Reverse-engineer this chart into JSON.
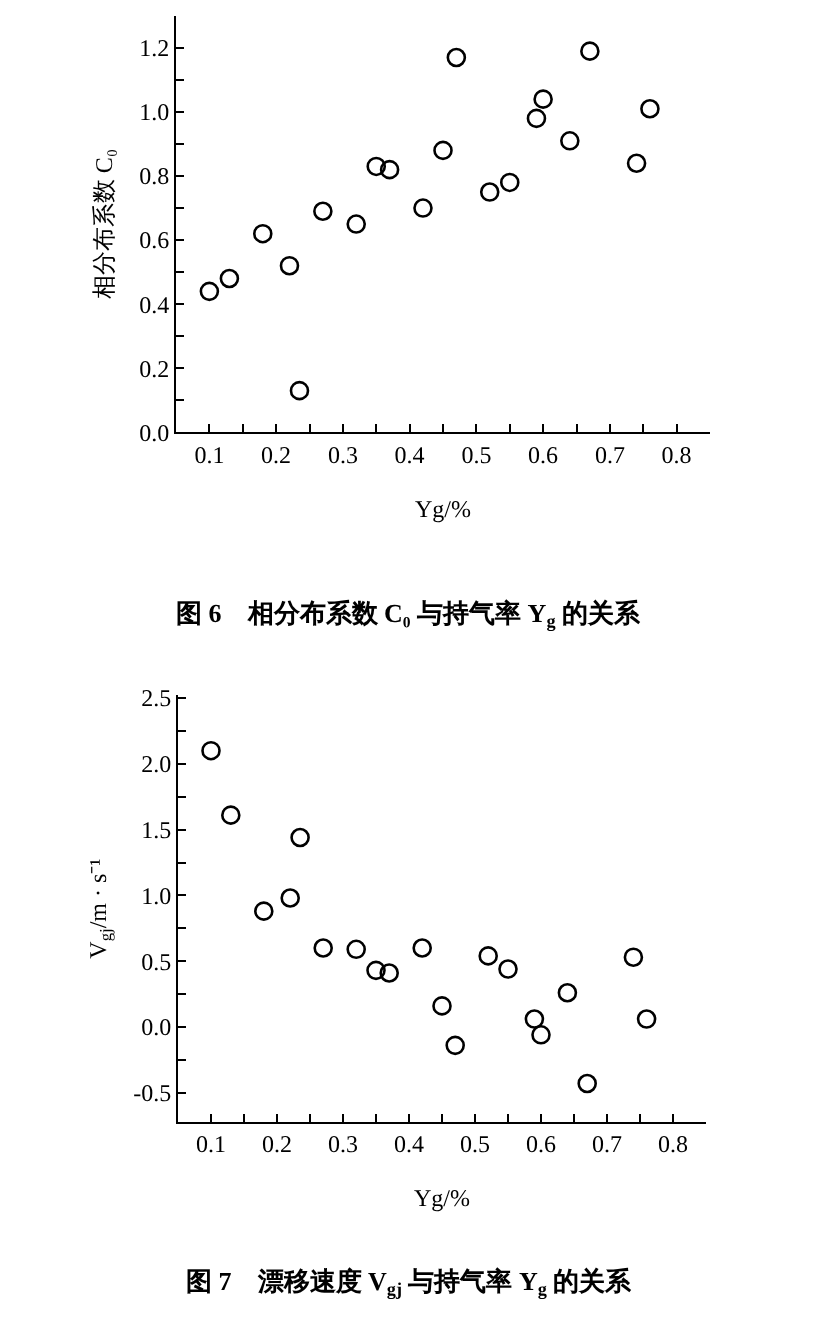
{
  "chart_data": [
    {
      "type": "scatter",
      "x": [
        0.1,
        0.13,
        0.18,
        0.22,
        0.235,
        0.27,
        0.32,
        0.35,
        0.37,
        0.42,
        0.45,
        0.47,
        0.52,
        0.55,
        0.59,
        0.6,
        0.64,
        0.67,
        0.74,
        0.76
      ],
      "values": [
        0.44,
        0.48,
        0.62,
        0.52,
        0.13,
        0.69,
        0.65,
        0.83,
        0.82,
        0.7,
        0.88,
        1.17,
        0.75,
        0.78,
        0.98,
        1.04,
        0.91,
        1.19,
        0.84,
        1.01
      ],
      "color": "#000000",
      "marker": "circle",
      "xlabel": "Yg/%",
      "ylabel": "相分布系数 C₀",
      "xlim": [
        0.05,
        0.85
      ],
      "xticks": [
        {
          "value": 0.05,
          "label": null
        },
        0.1,
        {
          "value": 0.15,
          "label": null
        },
        0.2,
        {
          "value": 0.25,
          "label": null
        },
        0.3,
        {
          "value": 0.35,
          "label": null
        },
        0.4,
        {
          "value": 0.45,
          "label": null
        },
        0.5,
        {
          "value": 0.55,
          "label": null
        },
        0.6,
        {
          "value": 0.65,
          "label": null
        },
        0.7,
        {
          "value": 0.75,
          "label": null
        },
        0.8
      ],
      "ylim": [
        0,
        1.3
      ],
      "yticks": [
        {
          "value": 0,
          "label": "0.0"
        },
        {
          "value": 0.1,
          "label": null
        },
        0.2,
        {
          "value": 0.3,
          "label": null
        },
        0.4,
        {
          "value": 0.5,
          "label": null
        },
        0.6,
        {
          "value": 0.7,
          "label": null
        },
        0.8,
        {
          "value": 0.9,
          "label": null
        },
        {
          "value": 1.0,
          "label": "1.0"
        },
        {
          "value": 1.1,
          "label": null
        },
        1.2
      ],
      "annotations": [
        "图 6　相分布系数 C₀ 与持气率 Y$_{g}$ 的关系"
      ]
    },
    {
      "type": "scatter",
      "x": [
        0.1,
        0.13,
        0.18,
        0.22,
        0.235,
        0.27,
        0.32,
        0.35,
        0.37,
        0.42,
        0.45,
        0.47,
        0.52,
        0.55,
        0.59,
        0.6,
        0.64,
        0.67,
        0.74,
        0.76
      ],
      "values": [
        2.1,
        1.61,
        0.88,
        0.98,
        1.44,
        0.6,
        0.59,
        0.43,
        0.41,
        0.6,
        0.16,
        -0.14,
        0.54,
        0.44,
        0.06,
        -0.06,
        0.26,
        -0.43,
        0.53,
        0.06
      ],
      "color": "#000000",
      "marker": "circle",
      "xlabel": "Yg/%",
      "ylabel": "V$_{gj}$/m · s⁻¹",
      "xlim": [
        0.05,
        0.85
      ],
      "xticks": [
        {
          "value": 0.05,
          "label": null
        },
        0.1,
        {
          "value": 0.15,
          "label": null
        },
        0.2,
        {
          "value": 0.25,
          "label": null
        },
        0.3,
        {
          "value": 0.35,
          "label": null
        },
        0.4,
        {
          "value": 0.45,
          "label": null
        },
        0.5,
        {
          "value": 0.55,
          "label": null
        },
        0.6,
        {
          "value": 0.65,
          "label": null
        },
        0.7,
        {
          "value": 0.75,
          "label": null
        },
        0.8
      ],
      "ylim": [
        -0.72,
        2.52
      ],
      "yticks": [
        -0.5,
        {
          "value": -0.25,
          "label": null
        },
        {
          "value": 0,
          "label": "0.0"
        },
        {
          "value": 0.25,
          "label": null
        },
        0.5,
        {
          "value": 0.75,
          "label": null
        },
        {
          "value": 1.0,
          "label": "1.0"
        },
        {
          "value": 1.25,
          "label": null
        },
        1.5,
        {
          "value": 1.75,
          "label": null
        },
        {
          "value": 2.0,
          "label": "2.0"
        },
        {
          "value": 2.25,
          "label": null
        },
        2.5
      ],
      "annotations": [
        "图 7　漂移速度 V$_{gj}$ 与持气率 Y$_{g}$ 的关系"
      ]
    }
  ]
}
